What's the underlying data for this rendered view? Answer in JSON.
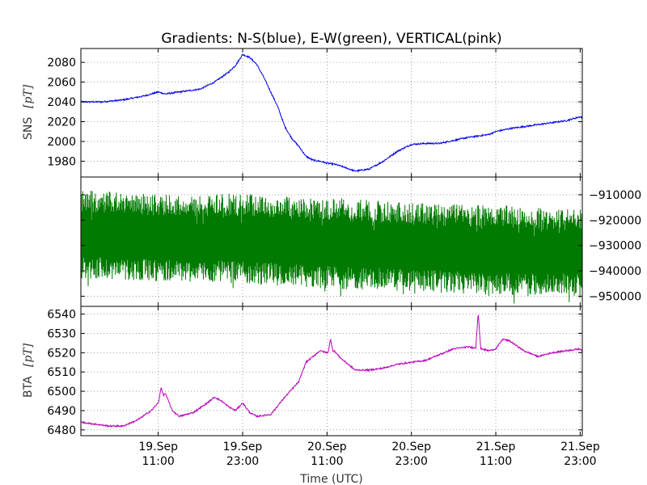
{
  "chart_data": {
    "type": "line",
    "title": "Gradients: N-S(blue), E-W(green), VERTICAL(pink)",
    "xlabel": "Time (UTC)",
    "x_ticks": [
      {
        "h": 0,
        "line1": "19.Sep",
        "line2": "11:00"
      },
      {
        "h": 12,
        "line1": "19.Sep",
        "line2": "23:00"
      },
      {
        "h": 24,
        "line1": "20.Sep",
        "line2": "11:00"
      },
      {
        "h": 36,
        "line1": "20.Sep",
        "line2": "23:00"
      },
      {
        "h": 48,
        "line1": "21.Sep",
        "line2": "11:00"
      },
      {
        "h": 60,
        "line1": "21.Sep",
        "line2": "23:00"
      }
    ],
    "x_range_hours": [
      -11,
      60.3
    ],
    "x_unit_note": "hours relative to 19.Sep 11:00",
    "panels": [
      {
        "name": "SNS",
        "ylabel": "SNS",
        "ylabel_unit": "[pT]",
        "color": "#0000ee",
        "ylim": [
          1964,
          2094
        ],
        "yticks": [
          1980,
          2000,
          2020,
          2040,
          2060,
          2080
        ],
        "tick_side": "left",
        "series": {
          "x": [
            -11,
            -8,
            -5,
            -2,
            0,
            1,
            3,
            6,
            8,
            10,
            11,
            12,
            13,
            14,
            15,
            16,
            17,
            18,
            19,
            20,
            21,
            22,
            23,
            24,
            25,
            26,
            28,
            30,
            32,
            34,
            36,
            38,
            40,
            42,
            44,
            46,
            47,
            48,
            50,
            52,
            54,
            56,
            58,
            60,
            60.3
          ],
          "y": [
            2040,
            2040,
            2042,
            2046,
            2050,
            2048,
            2050,
            2053,
            2060,
            2070,
            2077,
            2088,
            2085,
            2078,
            2065,
            2050,
            2035,
            2015,
            2003,
            1995,
            1985,
            1981,
            1980,
            1978,
            1977,
            1975,
            1970,
            1972,
            1980,
            1990,
            1997,
            1998,
            1998,
            2001,
            2004,
            2006,
            2007,
            2010,
            2013,
            2015,
            2017,
            2019,
            2021,
            2025,
            2024
          ]
        }
      },
      {
        "name": "EW",
        "ylabel": "",
        "color": "#007a00",
        "ylim": [
          -954000,
          -903000
        ],
        "yticks": [
          -910000,
          -920000,
          -930000,
          -940000,
          -950000
        ],
        "tick_labels": [
          "−910000",
          "−920000",
          "−930000",
          "−940000",
          "−950000"
        ],
        "tick_side": "right",
        "band": {
          "x": [
            -11,
            0,
            12,
            24,
            36,
            48,
            60.3
          ],
          "upper": [
            -908000,
            -910000,
            -909500,
            -911000,
            -913000,
            -914000,
            -916000
          ],
          "lower": [
            -943000,
            -944000,
            -945000,
            -947000,
            -948000,
            -950000,
            -949000
          ]
        }
      },
      {
        "name": "BTA",
        "ylabel": "BTA",
        "ylabel_unit": "[pT]",
        "color": "#bb00bb",
        "ylim": [
          6477,
          6544
        ],
        "yticks": [
          6480,
          6490,
          6500,
          6510,
          6520,
          6530,
          6540
        ],
        "tick_side": "left",
        "series": {
          "x": [
            -11,
            -9,
            -7,
            -5,
            -3,
            -1,
            0,
            1,
            2,
            3,
            5,
            7,
            8,
            9,
            10,
            11,
            12,
            13,
            14,
            16,
            18,
            20,
            21,
            22,
            23,
            24,
            25,
            26,
            28,
            30,
            32,
            34,
            36,
            38,
            40,
            42,
            44,
            46,
            47,
            48,
            49,
            50,
            52,
            54,
            56,
            58,
            60,
            60.3
          ],
          "y": [
            6484,
            6483,
            6482,
            6482,
            6485,
            6490,
            6494,
            6499,
            6490,
            6487,
            6489,
            6494,
            6497,
            6495,
            6492,
            6490,
            6494,
            6489,
            6487,
            6488,
            6497,
            6505,
            6515,
            6518,
            6521,
            6520,
            6521,
            6517,
            6511,
            6511,
            6512,
            6514,
            6515,
            6516,
            6519,
            6522,
            6523,
            6522,
            6521,
            6522,
            6527,
            6526,
            6521,
            6518,
            6520,
            6521,
            6522,
            6521
          ]
        },
        "spikes": [
          {
            "x": 0.4,
            "y": 6502
          },
          {
            "x": 24.5,
            "y": 6527
          },
          {
            "x": 45.5,
            "y": 6541
          }
        ]
      }
    ]
  }
}
